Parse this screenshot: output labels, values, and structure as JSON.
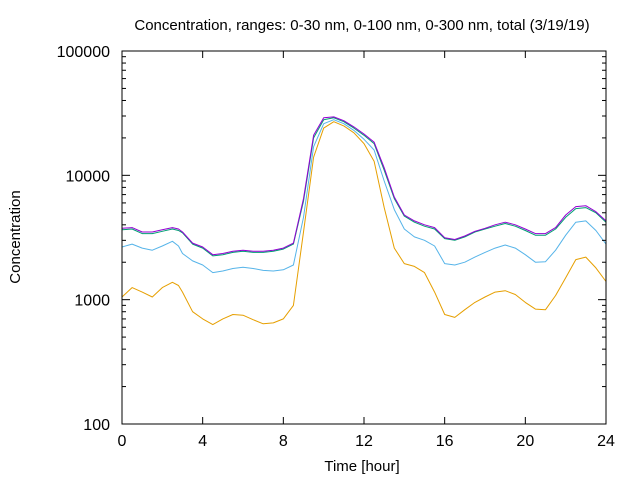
{
  "chart_data": {
    "type": "line",
    "title": "Concentration, ranges: 0-30 nm, 0-100 nm, 0-300 nm, total (3/19/19)",
    "xlabel": "Time [hour]",
    "ylabel": "Concentration",
    "xlim": [
      0,
      24
    ],
    "ylim": [
      100,
      100000
    ],
    "y_scale": "log",
    "grid": false,
    "x_ticks": [
      0,
      4,
      8,
      12,
      16,
      20,
      24
    ],
    "x_tick_labels": [
      "0",
      "4",
      "8",
      "12",
      "16",
      "20",
      "24"
    ],
    "y_ticks": [
      100,
      1000,
      10000,
      100000
    ],
    "y_tick_labels": [
      "100",
      "1000",
      "10000",
      "100000"
    ],
    "x": [
      0,
      0.5,
      1,
      1.5,
      2,
      2.5,
      2.8,
      3,
      3.5,
      4,
      4.5,
      5,
      5.5,
      6,
      6.5,
      7,
      7.5,
      8,
      8.5,
      9,
      9.5,
      10,
      10.5,
      11,
      11.5,
      12,
      12.5,
      13,
      13.5,
      14,
      14.5,
      15,
      15.5,
      16,
      16.5,
      17,
      17.5,
      18,
      18.5,
      19,
      19.5,
      20,
      20.5,
      21,
      21.5,
      22,
      22.5,
      23,
      23.5,
      24
    ],
    "series": [
      {
        "color": "#e69f00",
        "values": [
          1050,
          1250,
          1150,
          1050,
          1250,
          1380,
          1300,
          1150,
          800,
          700,
          630,
          700,
          760,
          750,
          690,
          640,
          650,
          700,
          900,
          3500,
          14000,
          24000,
          27000,
          25000,
          22000,
          18000,
          13000,
          5500,
          2600,
          1950,
          1850,
          1650,
          1150,
          760,
          720,
          830,
          950,
          1050,
          1150,
          1180,
          1100,
          950,
          840,
          830,
          1080,
          1500,
          2100,
          2200,
          1800,
          1400
        ]
      },
      {
        "color": "#56b4e9",
        "values": [
          2650,
          2800,
          2600,
          2500,
          2700,
          2950,
          2700,
          2350,
          2050,
          1900,
          1650,
          1700,
          1780,
          1820,
          1780,
          1720,
          1700,
          1740,
          1900,
          4600,
          17000,
          26000,
          28000,
          26000,
          23000,
          19500,
          16000,
          9000,
          5300,
          3700,
          3200,
          3000,
          2700,
          1950,
          1900,
          2000,
          2200,
          2400,
          2600,
          2750,
          2600,
          2300,
          2000,
          2020,
          2500,
          3300,
          4200,
          4300,
          3600,
          2800
        ]
      },
      {
        "color": "#009e73",
        "values": [
          3650,
          3700,
          3400,
          3400,
          3550,
          3700,
          3600,
          3450,
          2800,
          2600,
          2250,
          2300,
          2400,
          2450,
          2400,
          2400,
          2450,
          2550,
          2800,
          6200,
          20000,
          28000,
          29000,
          27000,
          24000,
          21000,
          18000,
          11000,
          6500,
          4700,
          4200,
          3900,
          3700,
          3100,
          3000,
          3200,
          3500,
          3700,
          3900,
          4100,
          3900,
          3600,
          3300,
          3300,
          3700,
          4600,
          5400,
          5500,
          5000,
          4200
        ]
      },
      {
        "color": "#9400d3",
        "values": [
          3750,
          3800,
          3500,
          3500,
          3650,
          3800,
          3700,
          3500,
          2850,
          2650,
          2300,
          2350,
          2450,
          2500,
          2450,
          2450,
          2500,
          2600,
          2850,
          6500,
          21000,
          29000,
          29500,
          27500,
          24500,
          21500,
          18500,
          11500,
          6700,
          4800,
          4300,
          4000,
          3800,
          3150,
          3050,
          3250,
          3550,
          3750,
          4000,
          4200,
          4000,
          3700,
          3400,
          3400,
          3800,
          4800,
          5600,
          5700,
          5100,
          4300
        ]
      }
    ]
  }
}
